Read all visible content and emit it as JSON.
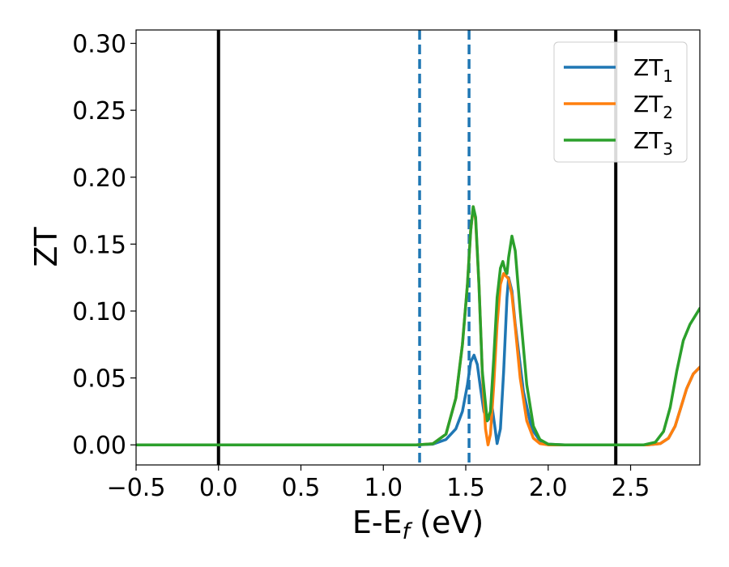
{
  "chart_data": {
    "type": "line",
    "title": "",
    "xlabel": {
      "main": "E-E",
      "sub": "f",
      "unit": " (eV)"
    },
    "ylabel": "ZT",
    "xlim": [
      -0.5,
      2.92
    ],
    "ylim": [
      -0.015,
      0.31
    ],
    "x_ticks": [
      -0.5,
      0.0,
      0.5,
      1.0,
      1.5,
      2.0,
      2.5
    ],
    "x_tick_labels": [
      "−0.5",
      "0.0",
      "0.5",
      "1.0",
      "1.5",
      "2.0",
      "2.5"
    ],
    "y_ticks": [
      0.0,
      0.05,
      0.1,
      0.15,
      0.2,
      0.25,
      0.3
    ],
    "y_tick_labels": [
      "0.00",
      "0.05",
      "0.10",
      "0.15",
      "0.20",
      "0.25",
      "0.30"
    ],
    "grid": false,
    "legend_position": "top-right",
    "vertical_lines": [
      {
        "x": 0.0,
        "style": "solid",
        "color": "#000000"
      },
      {
        "x": 2.41,
        "style": "solid",
        "color": "#000000"
      },
      {
        "x": 1.22,
        "style": "dashed",
        "color": "#1f77b4"
      },
      {
        "x": 1.52,
        "style": "dashed",
        "color": "#1f77b4"
      }
    ],
    "series": [
      {
        "name": "ZT",
        "subscript": "1",
        "color": "#1f77b4",
        "points": [
          [
            -0.5,
            0
          ],
          [
            1.2,
            0
          ],
          [
            1.3,
            0.0005
          ],
          [
            1.38,
            0.004
          ],
          [
            1.44,
            0.012
          ],
          [
            1.48,
            0.025
          ],
          [
            1.51,
            0.045
          ],
          [
            1.53,
            0.062
          ],
          [
            1.55,
            0.067
          ],
          [
            1.57,
            0.06
          ],
          [
            1.59,
            0.042
          ],
          [
            1.61,
            0.025
          ],
          [
            1.63,
            0.018
          ],
          [
            1.645,
            0.02
          ],
          [
            1.66,
            0.028
          ],
          [
            1.675,
            0.015
          ],
          [
            1.69,
            0.001
          ],
          [
            1.71,
            0.012
          ],
          [
            1.73,
            0.055
          ],
          [
            1.75,
            0.11
          ],
          [
            1.76,
            0.125
          ],
          [
            1.78,
            0.115
          ],
          [
            1.8,
            0.09
          ],
          [
            1.85,
            0.04
          ],
          [
            1.9,
            0.012
          ],
          [
            1.95,
            0.003
          ],
          [
            2.0,
            0.0005
          ],
          [
            2.1,
            0
          ],
          [
            2.6,
            0
          ],
          [
            2.68,
            0.001
          ],
          [
            2.73,
            0.005
          ],
          [
            2.77,
            0.014
          ],
          [
            2.8,
            0.026
          ],
          [
            2.84,
            0.042
          ],
          [
            2.88,
            0.053
          ],
          [
            2.92,
            0.058
          ]
        ]
      },
      {
        "name": "ZT",
        "subscript": "2",
        "color": "#ff7f0e",
        "points": [
          [
            -0.5,
            0
          ],
          [
            1.2,
            0
          ],
          [
            1.3,
            0.0008
          ],
          [
            1.38,
            0.008
          ],
          [
            1.44,
            0.035
          ],
          [
            1.48,
            0.075
          ],
          [
            1.51,
            0.12
          ],
          [
            1.53,
            0.16
          ],
          [
            1.545,
            0.178
          ],
          [
            1.56,
            0.168
          ],
          [
            1.58,
            0.12
          ],
          [
            1.6,
            0.055
          ],
          [
            1.62,
            0.012
          ],
          [
            1.635,
            0
          ],
          [
            1.65,
            0.008
          ],
          [
            1.67,
            0.045
          ],
          [
            1.69,
            0.09
          ],
          [
            1.71,
            0.12
          ],
          [
            1.73,
            0.128
          ],
          [
            1.745,
            0.126
          ],
          [
            1.76,
            0.124
          ],
          [
            1.78,
            0.112
          ],
          [
            1.8,
            0.088
          ],
          [
            1.83,
            0.05
          ],
          [
            1.87,
            0.018
          ],
          [
            1.91,
            0.005
          ],
          [
            1.95,
            0.001
          ],
          [
            2.0,
            0
          ],
          [
            2.6,
            0
          ],
          [
            2.68,
            0.001
          ],
          [
            2.73,
            0.005
          ],
          [
            2.77,
            0.014
          ],
          [
            2.8,
            0.026
          ],
          [
            2.84,
            0.042
          ],
          [
            2.88,
            0.053
          ],
          [
            2.92,
            0.058
          ]
        ]
      },
      {
        "name": "ZT",
        "subscript": "3",
        "color": "#2ca02c",
        "points": [
          [
            -0.5,
            0
          ],
          [
            1.2,
            0
          ],
          [
            1.3,
            0.0008
          ],
          [
            1.38,
            0.008
          ],
          [
            1.44,
            0.035
          ],
          [
            1.48,
            0.075
          ],
          [
            1.51,
            0.12
          ],
          [
            1.53,
            0.16
          ],
          [
            1.545,
            0.178
          ],
          [
            1.56,
            0.17
          ],
          [
            1.58,
            0.12
          ],
          [
            1.6,
            0.055
          ],
          [
            1.63,
            0.018
          ],
          [
            1.65,
            0.025
          ],
          [
            1.67,
            0.065
          ],
          [
            1.69,
            0.11
          ],
          [
            1.71,
            0.132
          ],
          [
            1.725,
            0.137
          ],
          [
            1.74,
            0.13
          ],
          [
            1.75,
            0.128
          ],
          [
            1.76,
            0.14
          ],
          [
            1.78,
            0.156
          ],
          [
            1.8,
            0.145
          ],
          [
            1.83,
            0.1
          ],
          [
            1.87,
            0.045
          ],
          [
            1.91,
            0.014
          ],
          [
            1.95,
            0.004
          ],
          [
            2.0,
            0.0005
          ],
          [
            2.1,
            0
          ],
          [
            2.58,
            0
          ],
          [
            2.65,
            0.002
          ],
          [
            2.7,
            0.01
          ],
          [
            2.74,
            0.028
          ],
          [
            2.78,
            0.055
          ],
          [
            2.82,
            0.078
          ],
          [
            2.86,
            0.09
          ],
          [
            2.92,
            0.102
          ]
        ]
      }
    ]
  }
}
